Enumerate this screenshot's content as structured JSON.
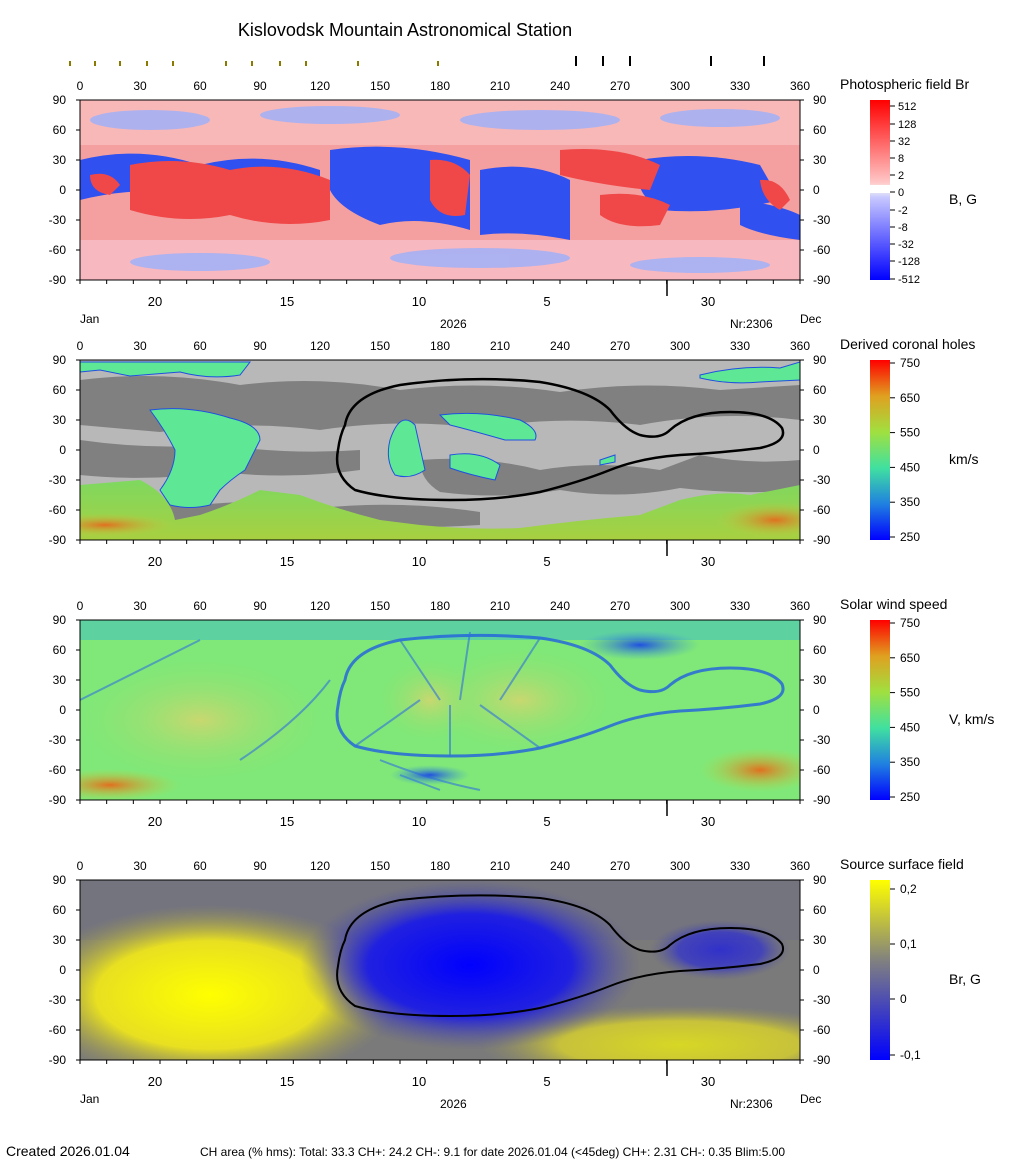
{
  "title": "Kislovodsk Mountain Astronomical Station",
  "axes": {
    "x_ticks": [
      "0",
      "30",
      "60",
      "90",
      "120",
      "150",
      "180",
      "210",
      "240",
      "270",
      "300",
      "330",
      "360"
    ],
    "y_ticks": [
      "90",
      "60",
      "30",
      "0",
      "-30",
      "-60",
      "-90"
    ],
    "date_ticks": [
      "20",
      "15",
      "10",
      "5",
      "30"
    ]
  },
  "bottom_labels": {
    "left": "Jan",
    "year": "2026",
    "rotation": "Nr:2306",
    "right": "Dec"
  },
  "panels": [
    {
      "id": "photospheric",
      "title": "Photospheric field Br",
      "unit": "B, G",
      "scale_labels": [
        "512",
        "128",
        "32",
        "8",
        "2",
        "0",
        "-2",
        "-8",
        "-32",
        "-128",
        "-512"
      ]
    },
    {
      "id": "coronal-holes",
      "title": "Derived coronal holes",
      "unit": "km/s",
      "scale_labels": [
        "750",
        "650",
        "550",
        "450",
        "350",
        "250"
      ]
    },
    {
      "id": "solar-wind",
      "title": "Solar wind speed",
      "unit": "V, km/s",
      "scale_labels": [
        "750",
        "650",
        "550",
        "450",
        "350",
        "250"
      ]
    },
    {
      "id": "source-surface",
      "title": "Source surface field",
      "unit": "Br, G",
      "scale_labels": [
        "0,2",
        "0,1",
        "0",
        "-0,1"
      ]
    }
  ],
  "footer": {
    "created": "Created  2026.01.04",
    "ch_area": "CH area (% hms): Total: 33.3 CH+: 24.2   CH-: 9.1 for date 2026.01.04 (<45deg) CH+: 2.31    CH-: 0.35 Blim:5.00"
  },
  "colors": {
    "positive_field": "#ff4040",
    "negative_field": "#2040ff",
    "ch_gray_dark": "#808080",
    "ch_gray_light": "#c0c0c0",
    "source_positive": "#ffff00",
    "source_negative": "#0000ff"
  }
}
